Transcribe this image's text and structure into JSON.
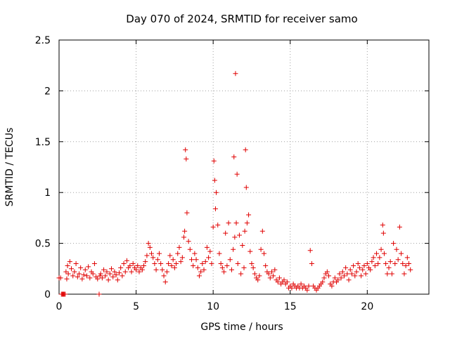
{
  "chart_data": {
    "type": "scatter",
    "title": "Day 070 of 2024, SRMTID for receiver samo",
    "xlabel": "GPS time / hours",
    "ylabel": "SRMTID / TECUs",
    "xlim": [
      0,
      24
    ],
    "ylim": [
      0,
      2.5
    ],
    "x_ticks": [
      0,
      5,
      10,
      15,
      20
    ],
    "x_tick_labels": [
      "0",
      "5",
      "10",
      "15",
      "20"
    ],
    "y_ticks": [
      0,
      0.5,
      1,
      1.5,
      2,
      2.5
    ],
    "y_tick_labels": [
      "0",
      "0.5",
      "1",
      "1.5",
      "2",
      "2.5"
    ],
    "grid": true,
    "marker": "+",
    "color": "#e00000",
    "series": [
      {
        "name": "samo",
        "x": [
          0.0,
          0.1,
          0.15,
          0.2,
          0.25,
          0.3,
          0.35,
          0.4,
          0.45,
          0.5,
          0.55,
          0.6,
          0.7,
          0.8,
          0.9,
          1.0,
          1.1,
          1.2,
          1.3,
          1.4,
          1.5,
          1.6,
          1.7,
          1.8,
          1.9,
          2.0,
          2.1,
          2.2,
          2.3,
          2.4,
          2.5,
          2.6,
          2.65,
          2.7,
          2.8,
          2.9,
          3.0,
          3.1,
          3.2,
          3.3,
          3.4,
          3.5,
          3.6,
          3.7,
          3.8,
          3.9,
          4.0,
          4.1,
          4.2,
          4.3,
          4.4,
          4.5,
          4.6,
          4.7,
          4.8,
          4.9,
          5.0,
          5.1,
          5.2,
          5.3,
          5.4,
          5.5,
          5.6,
          5.7,
          5.8,
          5.9,
          6.0,
          6.1,
          6.2,
          6.3,
          6.4,
          6.5,
          6.6,
          6.7,
          6.8,
          6.9,
          7.0,
          7.1,
          7.2,
          7.3,
          7.4,
          7.5,
          7.6,
          7.7,
          7.8,
          7.9,
          8.0,
          8.1,
          8.15,
          8.2,
          8.25,
          8.3,
          8.4,
          8.5,
          8.6,
          8.7,
          8.8,
          8.9,
          9.0,
          9.1,
          9.2,
          9.3,
          9.4,
          9.5,
          9.6,
          9.7,
          9.8,
          9.9,
          10.0,
          10.05,
          10.1,
          10.15,
          10.2,
          10.3,
          10.4,
          10.5,
          10.6,
          10.7,
          10.8,
          10.9,
          11.0,
          11.1,
          11.2,
          11.3,
          11.35,
          11.4,
          11.45,
          11.5,
          11.55,
          11.6,
          11.7,
          11.8,
          11.9,
          12.0,
          12.05,
          12.1,
          12.15,
          12.2,
          12.3,
          12.4,
          12.5,
          12.6,
          12.7,
          12.8,
          12.9,
          13.0,
          13.1,
          13.2,
          13.3,
          13.4,
          13.5,
          13.6,
          13.7,
          13.8,
          13.9,
          14.0,
          14.1,
          14.2,
          14.3,
          14.4,
          14.5,
          14.6,
          14.7,
          14.8,
          14.9,
          15.0,
          15.1,
          15.2,
          15.3,
          15.4,
          15.5,
          15.6,
          15.7,
          15.8,
          15.9,
          16.0,
          16.1,
          16.2,
          16.3,
          16.4,
          16.5,
          16.6,
          16.7,
          16.8,
          16.9,
          17.0,
          17.1,
          17.2,
          17.3,
          17.4,
          17.5,
          17.6,
          17.7,
          17.8,
          17.9,
          18.0,
          18.1,
          18.2,
          18.3,
          18.4,
          18.5,
          18.6,
          18.7,
          18.8,
          18.9,
          19.0,
          19.1,
          19.2,
          19.3,
          19.4,
          19.5,
          19.6,
          19.7,
          19.8,
          19.9,
          20.0,
          20.1,
          20.2,
          20.3,
          20.4,
          20.5,
          20.6,
          20.7,
          20.8,
          20.9,
          21.0,
          21.05,
          21.1,
          21.2,
          21.3,
          21.4,
          21.5,
          21.6,
          21.7,
          21.8,
          21.9,
          22.0,
          22.1,
          22.2,
          22.3,
          22.4,
          22.5,
          22.6,
          22.7,
          22.8
        ],
        "y": [
          0.16,
          0.16,
          0.0,
          0.0,
          0.0,
          0.0,
          0.0,
          0.0,
          0.22,
          0.15,
          0.28,
          0.2,
          0.32,
          0.25,
          0.18,
          0.22,
          0.3,
          0.17,
          0.2,
          0.26,
          0.15,
          0.19,
          0.24,
          0.18,
          0.27,
          0.16,
          0.22,
          0.2,
          0.3,
          0.17,
          0.15,
          0.0,
          0.18,
          0.2,
          0.16,
          0.24,
          0.18,
          0.22,
          0.14,
          0.2,
          0.25,
          0.17,
          0.22,
          0.19,
          0.14,
          0.21,
          0.26,
          0.18,
          0.3,
          0.22,
          0.33,
          0.26,
          0.28,
          0.22,
          0.3,
          0.26,
          0.24,
          0.28,
          0.22,
          0.26,
          0.24,
          0.28,
          0.32,
          0.38,
          0.5,
          0.46,
          0.4,
          0.36,
          0.3,
          0.24,
          0.34,
          0.4,
          0.3,
          0.24,
          0.18,
          0.12,
          0.22,
          0.3,
          0.38,
          0.28,
          0.34,
          0.26,
          0.3,
          0.4,
          0.46,
          0.32,
          0.36,
          0.56,
          0.62,
          1.42,
          1.33,
          0.8,
          0.52,
          0.44,
          0.34,
          0.28,
          0.4,
          0.34,
          0.26,
          0.18,
          0.22,
          0.3,
          0.24,
          0.32,
          0.46,
          0.36,
          0.42,
          0.3,
          0.66,
          1.31,
          1.12,
          0.84,
          1.0,
          0.68,
          0.4,
          0.3,
          0.26,
          0.22,
          0.6,
          0.28,
          0.7,
          0.34,
          0.24,
          0.44,
          1.35,
          0.56,
          2.17,
          0.7,
          1.18,
          0.3,
          0.58,
          0.2,
          0.48,
          0.26,
          0.62,
          1.42,
          1.05,
          0.7,
          0.78,
          0.42,
          0.3,
          0.26,
          0.2,
          0.16,
          0.14,
          0.18,
          0.44,
          0.62,
          0.4,
          0.28,
          0.22,
          0.2,
          0.16,
          0.22,
          0.18,
          0.24,
          0.14,
          0.12,
          0.16,
          0.1,
          0.12,
          0.14,
          0.1,
          0.12,
          0.06,
          0.08,
          0.06,
          0.1,
          0.08,
          0.06,
          0.08,
          0.06,
          0.1,
          0.06,
          0.08,
          0.06,
          0.04,
          0.08,
          0.43,
          0.3,
          0.08,
          0.06,
          0.04,
          0.06,
          0.08,
          0.1,
          0.12,
          0.16,
          0.2,
          0.22,
          0.18,
          0.1,
          0.08,
          0.12,
          0.16,
          0.12,
          0.14,
          0.2,
          0.16,
          0.22,
          0.18,
          0.26,
          0.2,
          0.14,
          0.24,
          0.2,
          0.28,
          0.18,
          0.22,
          0.3,
          0.26,
          0.18,
          0.24,
          0.28,
          0.2,
          0.3,
          0.26,
          0.24,
          0.32,
          0.36,
          0.28,
          0.4,
          0.3,
          0.36,
          0.44,
          0.68,
          0.6,
          0.4,
          0.3,
          0.2,
          0.26,
          0.32,
          0.2,
          0.5,
          0.3,
          0.44,
          0.34,
          0.66,
          0.4,
          0.3,
          0.2,
          0.28,
          0.36,
          0.3,
          0.24
        ]
      }
    ]
  }
}
